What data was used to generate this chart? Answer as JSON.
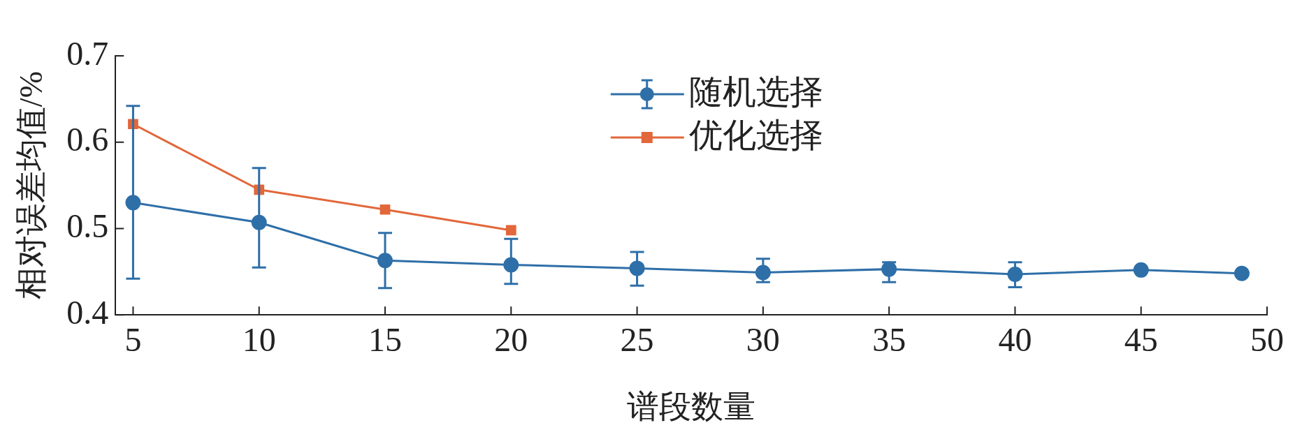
{
  "chart_data": {
    "type": "line",
    "xlabel": "谱段数量",
    "ylabel": "相对误差均值/%",
    "xlim": [
      4.3,
      50
    ],
    "xticks": [
      5,
      10,
      15,
      20,
      25,
      30,
      35,
      40,
      45,
      50
    ],
    "ylim": [
      0.4,
      0.7
    ],
    "yticks": [
      0.4,
      0.5,
      0.6,
      0.7
    ],
    "grid": false,
    "legend": "top",
    "series": [
      {
        "name": "随机选择",
        "color": "#2e6fa8",
        "marker": "circle",
        "x": [
          5,
          10,
          15,
          20,
          25,
          30,
          35,
          40,
          45,
          49
        ],
        "values": [
          0.53,
          0.507,
          0.463,
          0.458,
          0.454,
          0.449,
          0.453,
          0.447,
          0.452,
          0.448
        ],
        "errors": [
          [
            0.442,
            0.642
          ],
          [
            0.455,
            0.57
          ],
          [
            0.431,
            0.495
          ],
          [
            0.436,
            0.488
          ],
          [
            0.434,
            0.473
          ],
          [
            0.438,
            0.465
          ],
          [
            0.438,
            0.461
          ],
          [
            0.432,
            0.461
          ],
          null,
          null
        ]
      },
      {
        "name": "优化选择",
        "color": "#e2673a",
        "marker": "square",
        "x": [
          5,
          10,
          15,
          20
        ],
        "values": [
          0.621,
          0.545,
          0.522,
          0.498
        ]
      }
    ]
  }
}
